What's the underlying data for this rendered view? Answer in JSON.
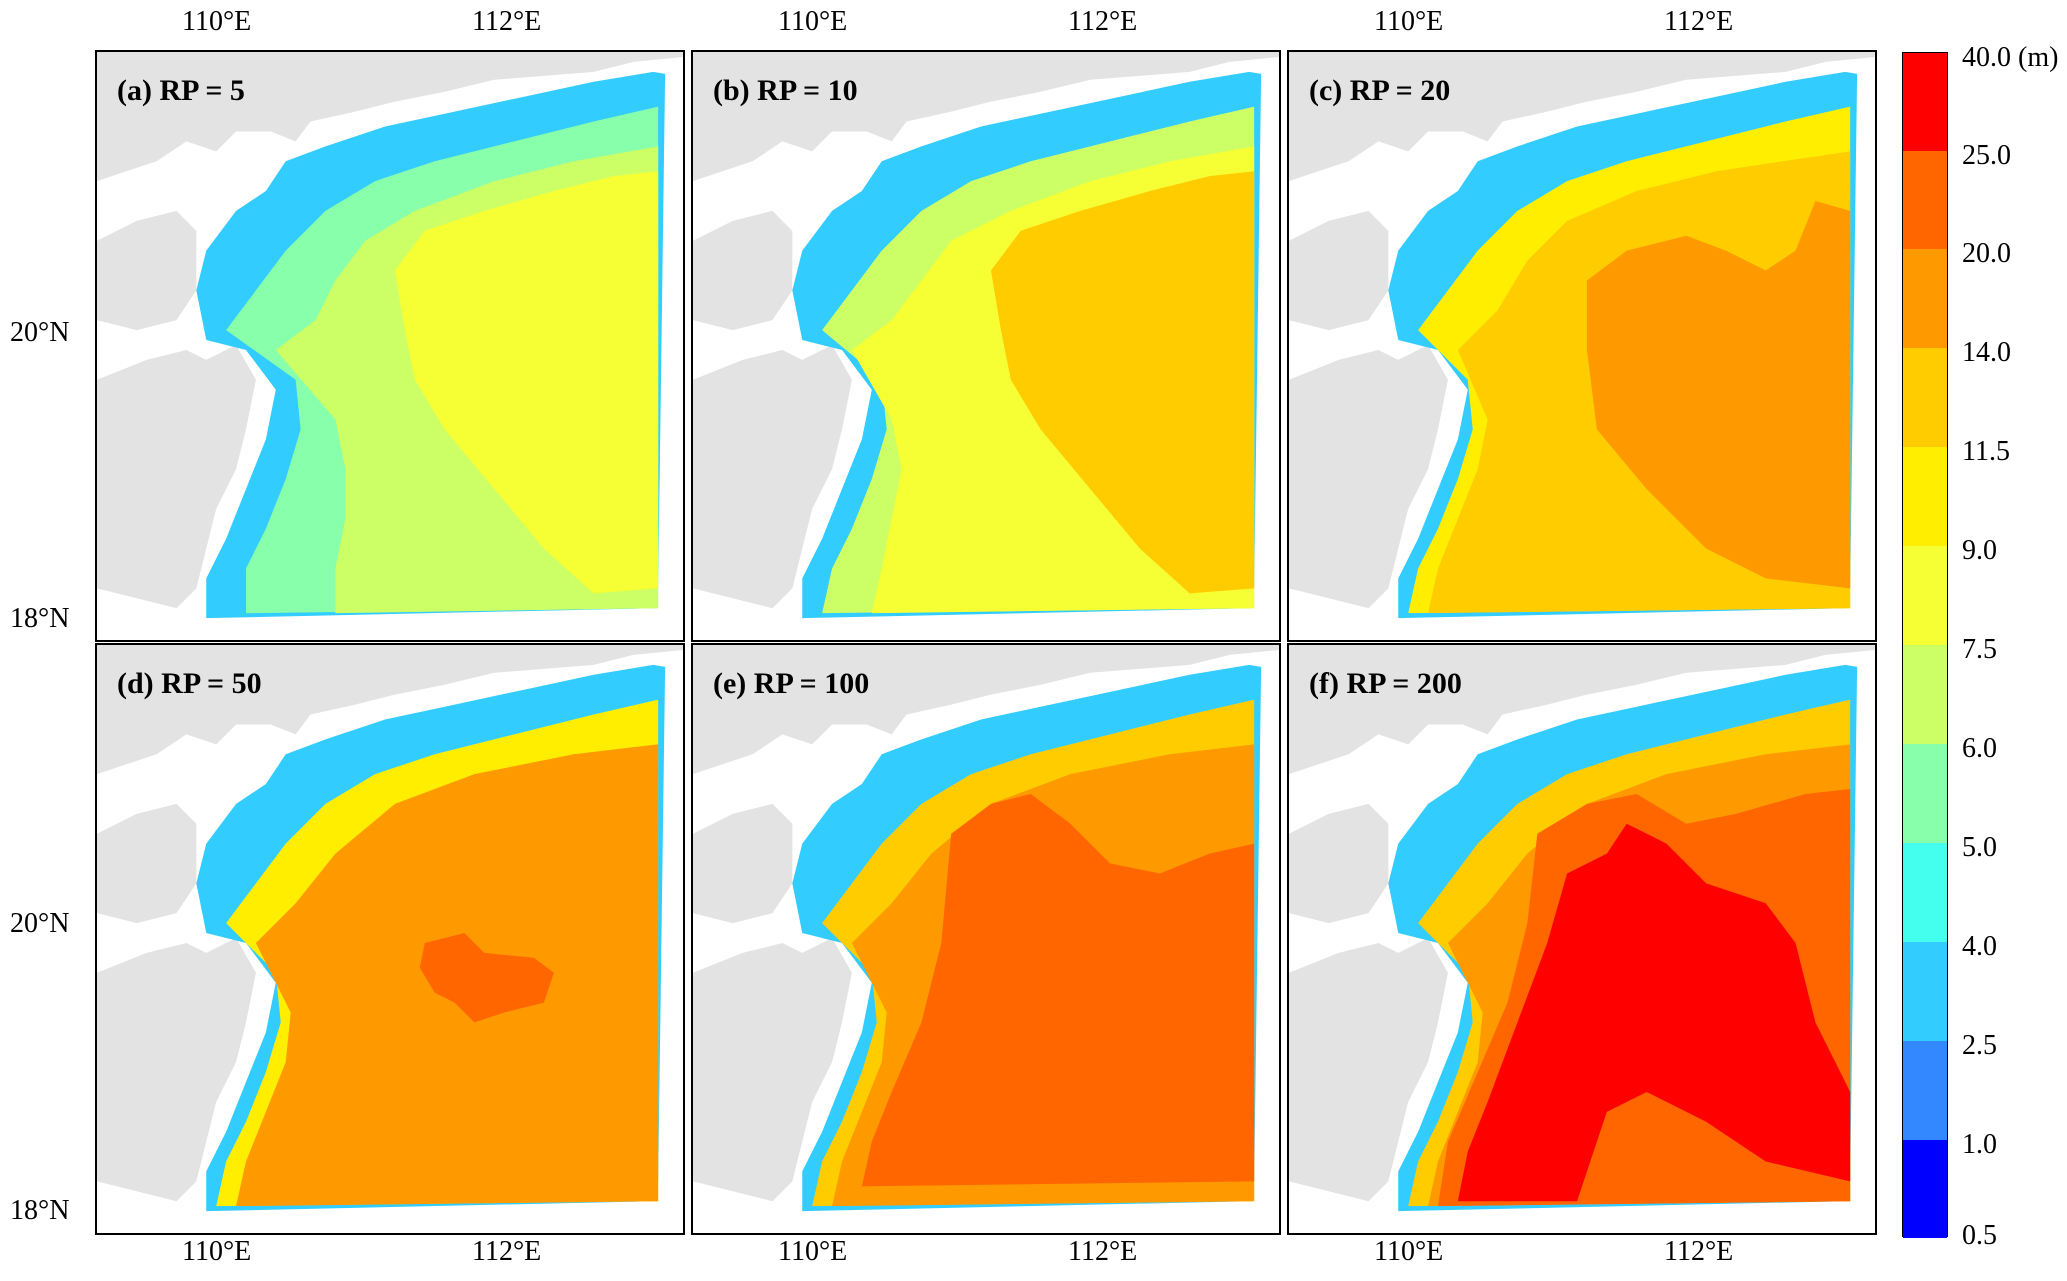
{
  "panels": [
    {
      "label": "(a) RP = 5"
    },
    {
      "label": "(b) RP = 10"
    },
    {
      "label": "(c) RP = 20"
    },
    {
      "label": "(d) RP = 50"
    },
    {
      "label": "(e) RP = 100"
    },
    {
      "label": "(f) RP = 200"
    }
  ],
  "axes": {
    "x_ticks": [
      "110°E",
      "112°E"
    ],
    "y_ticks": [
      "20°N",
      "18°N"
    ]
  },
  "colorbar": {
    "unit": "(m)",
    "levels": [
      "40.0",
      "25.0",
      "20.0",
      "14.0",
      "11.5",
      "9.0",
      "7.5",
      "6.0",
      "5.0",
      "4.0",
      "2.5",
      "1.0",
      "0.5"
    ],
    "top_label": "40.0 (m)",
    "colors": [
      "#ff0000",
      "#ff6600",
      "#ff9900",
      "#ffcc00",
      "#ffee00",
      "#f5ff33",
      "#ccff66",
      "#88ffaa",
      "#44ffee",
      "#33ccff",
      "#3388ff",
      "#3344ff",
      "#0000ff"
    ]
  },
  "map_colors": {
    "land": "#e3e3e3",
    "sea_background": "#ffffff"
  }
}
